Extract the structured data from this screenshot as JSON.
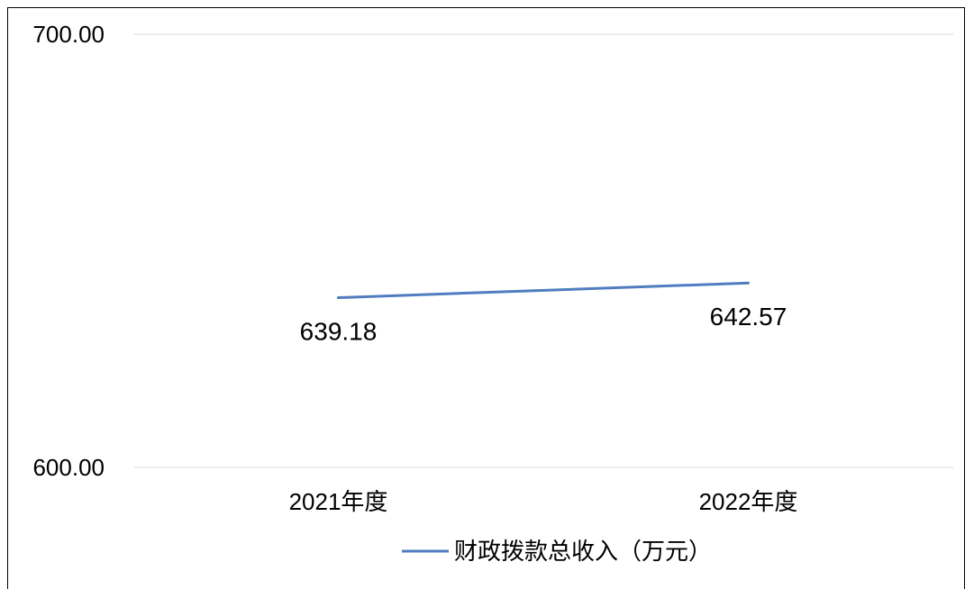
{
  "chart_data": {
    "type": "line",
    "categories": [
      "2021年度",
      "2022年度"
    ],
    "series": [
      {
        "name": "财政拨款总收入（万元）",
        "values": [
          639.18,
          642.57
        ],
        "color": "#4f7dbf"
      }
    ],
    "data_labels": [
      "639.18",
      "642.57"
    ],
    "y_ticks": [
      "700.00",
      "600.00"
    ],
    "ylim": [
      600,
      700
    ],
    "grid": true,
    "legend_position": "bottom"
  }
}
